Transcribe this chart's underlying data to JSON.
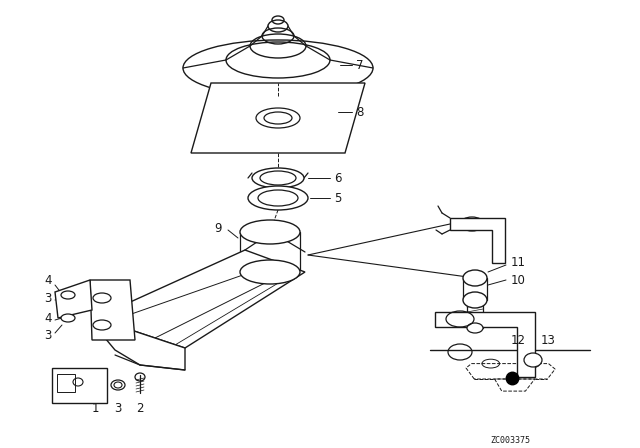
{
  "bg_color": "#ffffff",
  "line_color": "#1a1a1a",
  "fig_width": 6.4,
  "fig_height": 4.48,
  "dpi": 100,
  "watermark": "ZC003375"
}
